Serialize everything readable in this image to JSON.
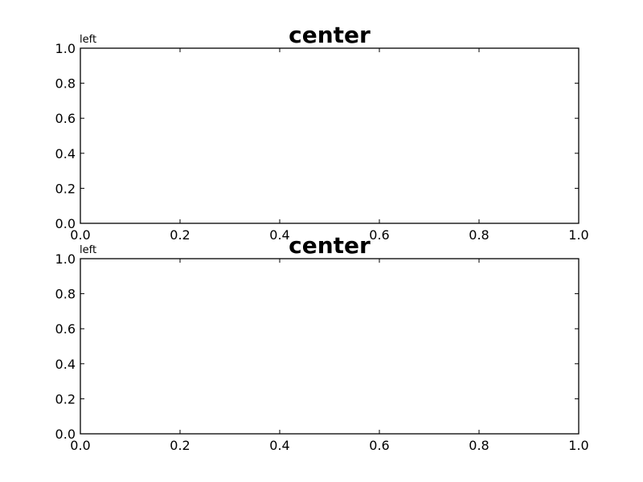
{
  "chart_data": [
    {
      "type": "scatter",
      "title": "center",
      "subtitle_left": "left",
      "xlabel": "",
      "ylabel": "",
      "xlim": [
        0.0,
        1.0
      ],
      "ylim": [
        0.0,
        1.0
      ],
      "x_ticks": [
        "0.0",
        "0.2",
        "0.4",
        "0.6",
        "0.8",
        "1.0"
      ],
      "y_ticks": [
        "0.0",
        "0.2",
        "0.4",
        "0.6",
        "0.8",
        "1.0"
      ],
      "series": [],
      "grid": false,
      "legend": "none"
    },
    {
      "type": "scatter",
      "title": "center",
      "subtitle_left": "left",
      "xlabel": "",
      "ylabel": "",
      "xlim": [
        0.0,
        1.0
      ],
      "ylim": [
        0.0,
        1.0
      ],
      "x_ticks": [
        "0.0",
        "0.2",
        "0.4",
        "0.6",
        "0.8",
        "1.0"
      ],
      "y_ticks": [
        "0.0",
        "0.2",
        "0.4",
        "0.6",
        "0.8",
        "1.0"
      ],
      "series": [],
      "grid": false,
      "legend": "none"
    }
  ]
}
